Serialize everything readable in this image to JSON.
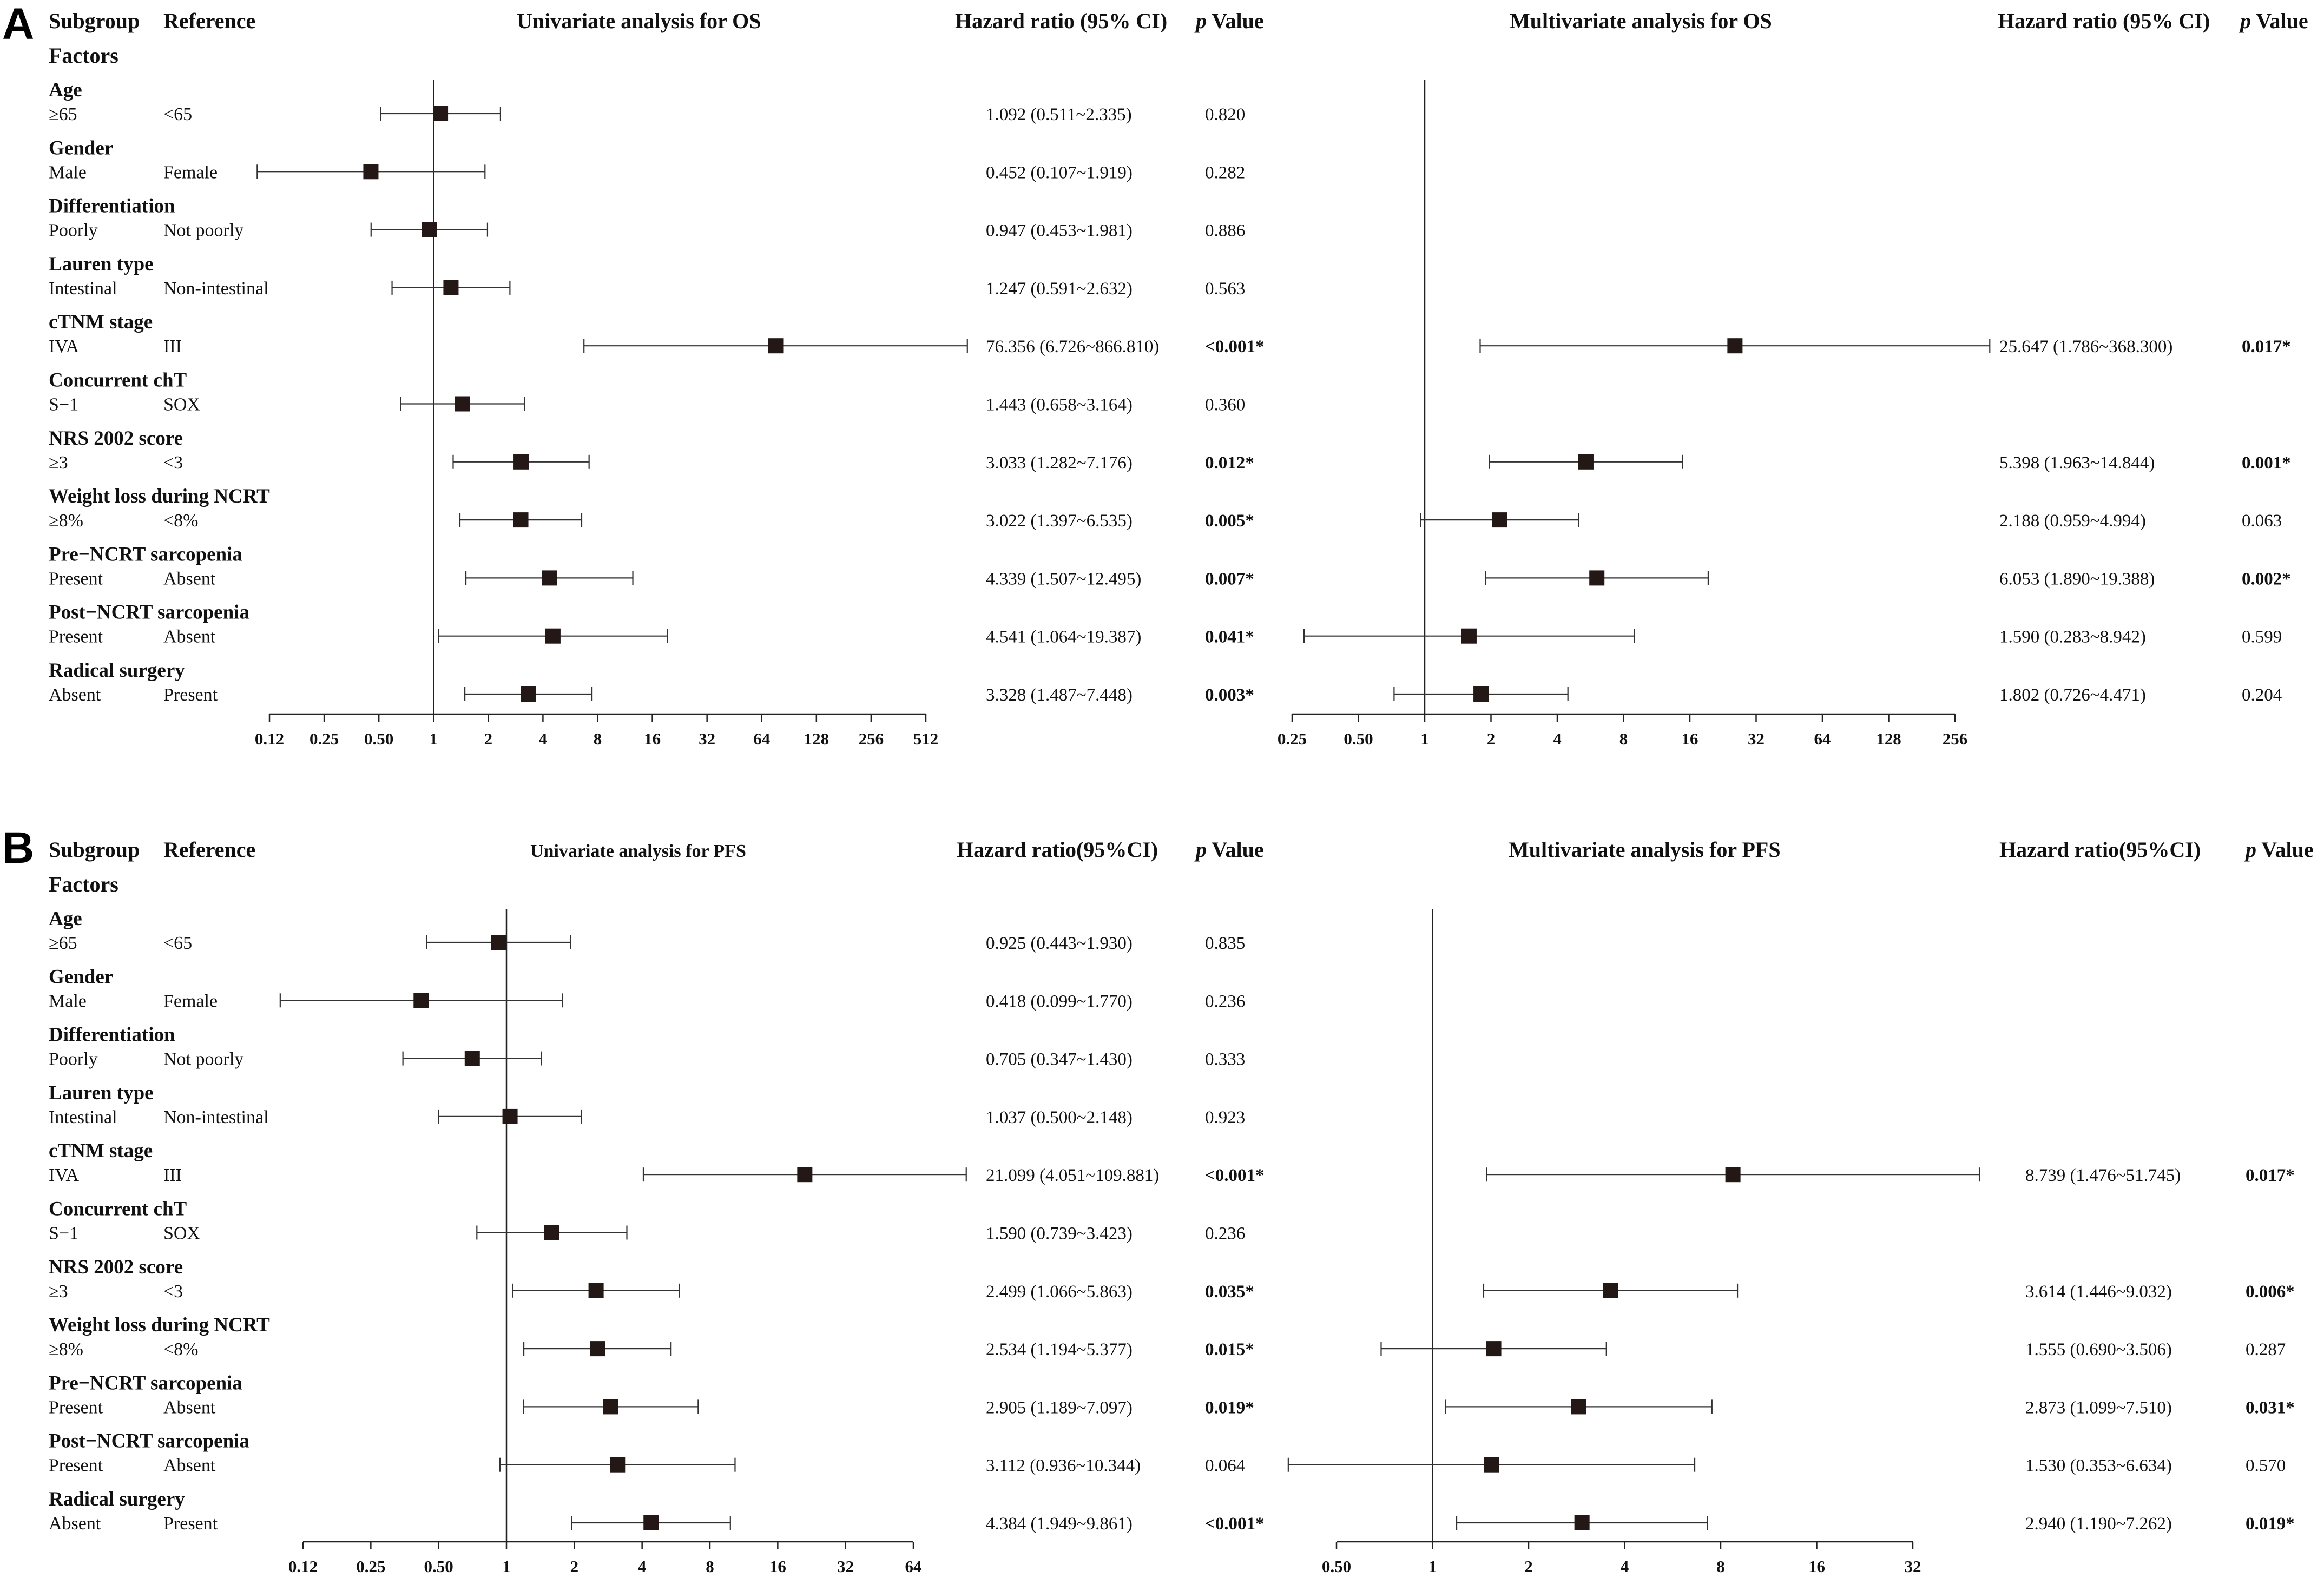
{
  "panels": [
    {
      "letter": "A",
      "headers": {
        "subgroup": "Subgroup",
        "reference": "Reference",
        "factors": "Factors",
        "univariate_title": "Univariate analysis for OS",
        "univariate_hr": "Hazard ratio (95% CI)",
        "p_italic": "p",
        "p_value": " Value",
        "multivariate_title": "Multivariate analysis for OS",
        "multivariate_hr": "Hazard ratio (95% CI)"
      }
    },
    {
      "letter": "B",
      "headers": {
        "subgroup": "Subgroup",
        "reference": "Reference",
        "factors": "Factors",
        "univariate_title": "Univariate analysis for PFS",
        "univariate_hr": "Hazard ratio(95%CI)",
        "p_italic": "p",
        "p_value": " Value",
        "multivariate_title": "Multivariate analysis for PFS",
        "multivariate_hr": "Hazard ratio(95%CI)"
      }
    }
  ],
  "chart_data": [
    {
      "type": "forest",
      "panel": "A",
      "title": "Univariate analysis for OS",
      "scale": "log2",
      "xlim": [
        0.12,
        512
      ],
      "ticks": [
        {
          "value": 0.125,
          "label": "0.12"
        },
        {
          "value": 0.25,
          "label": "0.25"
        },
        {
          "value": 0.5,
          "label": "0.50"
        },
        {
          "value": 1,
          "label": "1"
        },
        {
          "value": 2,
          "label": "2"
        },
        {
          "value": 4,
          "label": "4"
        },
        {
          "value": 8,
          "label": "8"
        },
        {
          "value": 16,
          "label": "16"
        },
        {
          "value": 32,
          "label": "32"
        },
        {
          "value": 64,
          "label": "64"
        },
        {
          "value": 128,
          "label": "128"
        },
        {
          "value": 256,
          "label": "256"
        },
        {
          "value": 512,
          "label": "512"
        }
      ],
      "rows": [
        {
          "factor": "Age",
          "subgroup": "≥65",
          "reference": "<65",
          "hr": 1.092,
          "lo": 0.511,
          "hi": 2.335,
          "hr_text": "1.092 (0.511~2.335)",
          "p": "0.820",
          "sig": false
        },
        {
          "factor": "Gender",
          "subgroup": "Male",
          "reference": "Female",
          "hr": 0.452,
          "lo": 0.107,
          "hi": 1.919,
          "hr_text": "0.452 (0.107~1.919)",
          "p": "0.282",
          "sig": false
        },
        {
          "factor": "Differentiation",
          "subgroup": "Poorly",
          "reference": "Not poorly",
          "hr": 0.947,
          "lo": 0.453,
          "hi": 1.981,
          "hr_text": "0.947 (0.453~1.981)",
          "p": "0.886",
          "sig": false
        },
        {
          "factor": "Lauren type",
          "subgroup": "Intestinal",
          "reference": "Non-intestinal",
          "hr": 1.247,
          "lo": 0.591,
          "hi": 2.632,
          "hr_text": "1.247 (0.591~2.632)",
          "p": "0.563",
          "sig": false
        },
        {
          "factor": "cTNM stage",
          "subgroup": "IVA",
          "reference": "III",
          "hr": 76.356,
          "lo": 6.726,
          "hi": 866.81,
          "hr_text": "76.356 (6.726~866.810)",
          "p": "<0.001*",
          "sig": true
        },
        {
          "factor": "Concurrent chT",
          "subgroup": "S−1",
          "reference": "SOX",
          "hr": 1.443,
          "lo": 0.658,
          "hi": 3.164,
          "hr_text": "1.443 (0.658~3.164)",
          "p": "0.360",
          "sig": false
        },
        {
          "factor": "NRS 2002 score",
          "subgroup": "≥3",
          "reference": "<3",
          "hr": 3.033,
          "lo": 1.282,
          "hi": 7.176,
          "hr_text": "3.033 (1.282~7.176)",
          "p": "0.012*",
          "sig": true
        },
        {
          "factor": "Weight loss during NCRT",
          "subgroup": "≥8%",
          "reference": "<8%",
          "hr": 3.022,
          "lo": 1.397,
          "hi": 6.535,
          "hr_text": "3.022 (1.397~6.535)",
          "p": "0.005*",
          "sig": true
        },
        {
          "factor": "Pre−NCRT sarcopenia",
          "subgroup": "Present",
          "reference": "Absent",
          "hr": 4.339,
          "lo": 1.507,
          "hi": 12.495,
          "hr_text": "4.339 (1.507~12.495)",
          "p": "0.007*",
          "sig": true
        },
        {
          "factor": "Post−NCRT sarcopenia",
          "subgroup": "Present",
          "reference": "Absent",
          "hr": 4.541,
          "lo": 1.064,
          "hi": 19.387,
          "hr_text": "4.541 (1.064~19.387)",
          "p": "0.041*",
          "sig": true
        },
        {
          "factor": "Radical surgery",
          "subgroup": "Absent",
          "reference": "Present",
          "hr": 3.328,
          "lo": 1.487,
          "hi": 7.448,
          "hr_text": "3.328 (1.487~7.448)",
          "p": "0.003*",
          "sig": true
        }
      ]
    },
    {
      "type": "forest",
      "panel": "A",
      "title": "Multivariate analysis for OS",
      "scale": "log2",
      "xlim": [
        0.25,
        256
      ],
      "ticks": [
        {
          "value": 0.25,
          "label": "0.25"
        },
        {
          "value": 0.5,
          "label": "0.50"
        },
        {
          "value": 1,
          "label": "1"
        },
        {
          "value": 2,
          "label": "2"
        },
        {
          "value": 4,
          "label": "4"
        },
        {
          "value": 8,
          "label": "8"
        },
        {
          "value": 16,
          "label": "16"
        },
        {
          "value": 32,
          "label": "32"
        },
        {
          "value": 64,
          "label": "64"
        },
        {
          "value": 128,
          "label": "128"
        },
        {
          "value": 256,
          "label": "256"
        }
      ],
      "rows": [
        {
          "factor": "cTNM stage",
          "hr": 25.647,
          "lo": 1.786,
          "hi": 368.3,
          "hr_text": "25.647 (1.786~368.300)",
          "p": "0.017*",
          "sig": true
        },
        {
          "factor": "NRS 2002 score",
          "hr": 5.398,
          "lo": 1.963,
          "hi": 14.844,
          "hr_text": "5.398 (1.963~14.844)",
          "p": "0.001*",
          "sig": true
        },
        {
          "factor": "Weight loss during NCRT",
          "hr": 2.188,
          "lo": 0.959,
          "hi": 4.994,
          "hr_text": "2.188 (0.959~4.994)",
          "p": "0.063",
          "sig": false
        },
        {
          "factor": "Pre−NCRT sarcopenia",
          "hr": 6.053,
          "lo": 1.89,
          "hi": 19.388,
          "hr_text": "6.053 (1.890~19.388)",
          "p": "0.002*",
          "sig": true
        },
        {
          "factor": "Post−NCRT sarcopenia",
          "hr": 1.59,
          "lo": 0.283,
          "hi": 8.942,
          "hr_text": "1.590 (0.283~8.942)",
          "p": "0.599",
          "sig": false
        },
        {
          "factor": "Radical surgery",
          "hr": 1.802,
          "lo": 0.726,
          "hi": 4.471,
          "hr_text": "1.802 (0.726~4.471)",
          "p": "0.204",
          "sig": false
        }
      ]
    },
    {
      "type": "forest",
      "panel": "B",
      "title": "Univariate analysis for PFS",
      "scale": "log2",
      "xlim": [
        0.12,
        64
      ],
      "ticks": [
        {
          "value": 0.125,
          "label": "0.12"
        },
        {
          "value": 0.25,
          "label": "0.25"
        },
        {
          "value": 0.5,
          "label": "0.50"
        },
        {
          "value": 1,
          "label": "1"
        },
        {
          "value": 2,
          "label": "2"
        },
        {
          "value": 4,
          "label": "4"
        },
        {
          "value": 8,
          "label": "8"
        },
        {
          "value": 16,
          "label": "16"
        },
        {
          "value": 32,
          "label": "32"
        },
        {
          "value": 64,
          "label": "64"
        }
      ],
      "rows": [
        {
          "factor": "Age",
          "subgroup": "≥65",
          "reference": "<65",
          "hr": 0.925,
          "lo": 0.443,
          "hi": 1.93,
          "hr_text": "0.925 (0.443~1.930)",
          "p": "0.835",
          "sig": false
        },
        {
          "factor": "Gender",
          "subgroup": "Male",
          "reference": "Female",
          "hr": 0.418,
          "lo": 0.099,
          "hi": 1.77,
          "hr_text": "0.418 (0.099~1.770)",
          "p": "0.236",
          "sig": false
        },
        {
          "factor": "Differentiation",
          "subgroup": "Poorly",
          "reference": "Not poorly",
          "hr": 0.705,
          "lo": 0.347,
          "hi": 1.43,
          "hr_text": "0.705 (0.347~1.430)",
          "p": "0.333",
          "sig": false
        },
        {
          "factor": "Lauren type",
          "subgroup": "Intestinal",
          "reference": "Non-intestinal",
          "hr": 1.037,
          "lo": 0.5,
          "hi": 2.148,
          "hr_text": "1.037 (0.500~2.148)",
          "p": "0.923",
          "sig": false
        },
        {
          "factor": "cTNM stage",
          "subgroup": "IVA",
          "reference": "III",
          "hr": 21.099,
          "lo": 4.051,
          "hi": 109.881,
          "hr_text": "21.099 (4.051~109.881)",
          "p": "<0.001*",
          "sig": true
        },
        {
          "factor": "Concurrent chT",
          "subgroup": "S−1",
          "reference": "SOX",
          "hr": 1.59,
          "lo": 0.739,
          "hi": 3.423,
          "hr_text": "1.590 (0.739~3.423)",
          "p": "0.236",
          "sig": false
        },
        {
          "factor": "NRS 2002 score",
          "subgroup": "≥3",
          "reference": "<3",
          "hr": 2.499,
          "lo": 1.066,
          "hi": 5.863,
          "hr_text": "2.499 (1.066~5.863)",
          "p": "0.035*",
          "sig": true
        },
        {
          "factor": "Weight loss during NCRT",
          "subgroup": "≥8%",
          "reference": "<8%",
          "hr": 2.534,
          "lo": 1.194,
          "hi": 5.377,
          "hr_text": "2.534 (1.194~5.377)",
          "p": "0.015*",
          "sig": true
        },
        {
          "factor": "Pre−NCRT sarcopenia",
          "subgroup": "Present",
          "reference": "Absent",
          "hr": 2.905,
          "lo": 1.189,
          "hi": 7.097,
          "hr_text": "2.905 (1.189~7.097)",
          "p": "0.019*",
          "sig": true
        },
        {
          "factor": "Post−NCRT sarcopenia",
          "subgroup": "Present",
          "reference": "Absent",
          "hr": 3.112,
          "lo": 0.936,
          "hi": 10.344,
          "hr_text": "3.112 (0.936~10.344)",
          "p": "0.064",
          "sig": false
        },
        {
          "factor": "Radical surgery",
          "subgroup": "Absent",
          "reference": "Present",
          "hr": 4.384,
          "lo": 1.949,
          "hi": 9.861,
          "hr_text": "4.384 (1.949~9.861)",
          "p": "<0.001*",
          "sig": true
        }
      ]
    },
    {
      "type": "forest",
      "panel": "B",
      "title": "Multivariate analysis for PFS",
      "scale": "log2",
      "xlim": [
        0.5,
        32
      ],
      "ticks": [
        {
          "value": 0.5,
          "label": "0.50"
        },
        {
          "value": 1,
          "label": "1"
        },
        {
          "value": 2,
          "label": "2"
        },
        {
          "value": 4,
          "label": "4"
        },
        {
          "value": 8,
          "label": "8"
        },
        {
          "value": 16,
          "label": "16"
        },
        {
          "value": 32,
          "label": "32"
        }
      ],
      "rows": [
        {
          "factor": "cTNM stage",
          "hr": 8.739,
          "lo": 1.476,
          "hi": 51.745,
          "hr_text": "8.739 (1.476~51.745)",
          "p": "0.017*",
          "sig": true
        },
        {
          "factor": "NRS 2002 score",
          "hr": 3.614,
          "lo": 1.446,
          "hi": 9.032,
          "hr_text": "3.614 (1.446~9.032)",
          "p": "0.006*",
          "sig": true
        },
        {
          "factor": "Weight loss during NCRT",
          "hr": 1.555,
          "lo": 0.69,
          "hi": 3.506,
          "hr_text": "1.555 (0.690~3.506)",
          "p": "0.287",
          "sig": false
        },
        {
          "factor": "Pre−NCRT sarcopenia",
          "hr": 2.873,
          "lo": 1.099,
          "hi": 7.51,
          "hr_text": "2.873 (1.099~7.510)",
          "p": "0.031*",
          "sig": true
        },
        {
          "factor": "Post−NCRT sarcopenia",
          "hr": 1.53,
          "lo": 0.353,
          "hi": 6.634,
          "hr_text": "1.530 (0.353~6.634)",
          "p": "0.570",
          "sig": false
        },
        {
          "factor": "Radical surgery",
          "hr": 2.94,
          "lo": 1.19,
          "hi": 7.262,
          "hr_text": "2.940 (1.190~7.262)",
          "p": "0.019*",
          "sig": true
        }
      ]
    }
  ]
}
